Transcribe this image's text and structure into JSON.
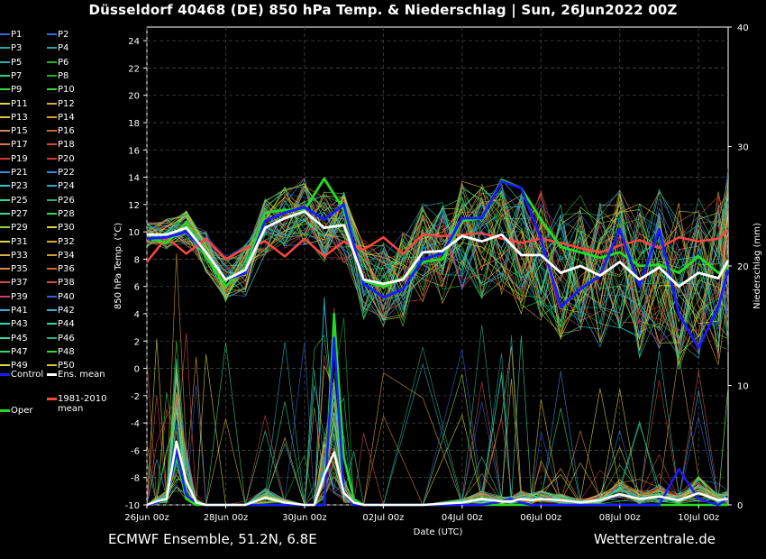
{
  "title": "Düsseldorf 40468 (DE)  850 hPa Temp. & Niederschlag | Sun, 26Jun2022 00Z",
  "footer": {
    "left": "ECMWF Ensemble, 51.2N, 6.8E",
    "right": "Wetterzentrale.de"
  },
  "legend": {
    "members": [
      "P1",
      "P2",
      "P3",
      "P4",
      "P5",
      "P6",
      "P7",
      "P8",
      "P9",
      "P10",
      "P11",
      "P12",
      "P13",
      "P14",
      "P15",
      "P16",
      "P17",
      "P18",
      "P19",
      "P20",
      "P21",
      "P22",
      "P23",
      "P24",
      "P25",
      "P26",
      "P27",
      "P28",
      "P29",
      "P30",
      "P31",
      "P32",
      "P33",
      "P34",
      "P35",
      "P36",
      "P37",
      "P38",
      "P39",
      "P40",
      "P41",
      "P42",
      "P43",
      "P44",
      "P45",
      "P46",
      "P47",
      "P48",
      "P49",
      "P50"
    ],
    "member_colors": [
      "#3a5fd8",
      "#3a5fd8",
      "#2aa8a8",
      "#2aa8a8",
      "#22b0b0",
      "#22b022",
      "#2ad88a",
      "#22b022",
      "#3ad83a",
      "#3ad83a",
      "#d8d84a",
      "#d8a84a",
      "#d8c03a",
      "#d89a3a",
      "#d88a4a",
      "#c86a2a",
      "#d87a4a",
      "#d84a2a",
      "#d83a3a",
      "#d83a3a",
      "#3a8ad8",
      "#3a8ad8",
      "#2ac8c8",
      "#2aa8c8",
      "#2ad8a8",
      "#22b08a",
      "#3ad88a",
      "#3ad84a",
      "#8ad83a",
      "#d8d82a",
      "#d8d84a",
      "#d8b02a",
      "#d8b03a",
      "#d89a2a",
      "#d88a3a",
      "#d86a2a",
      "#d84a4a",
      "#d84a4a",
      "#d83a6a",
      "#3a5fd8",
      "#3ab0d8",
      "#3ab0d8",
      "#2ad8c8",
      "#2ad8a8",
      "#3ad8a8",
      "#2ab08a",
      "#3ad86a",
      "#3ad83a",
      "#d8d83a",
      "#d8c02a"
    ],
    "control": "Control",
    "ens_mean": "Ens. mean",
    "oper": "Oper",
    "clim_line1": "1981-2010",
    "clim_line2": "mean",
    "colors": {
      "control": "#1a1aff",
      "ens_mean": "#ffffff",
      "oper": "#22dd22",
      "clim": "#ff4444"
    }
  },
  "chart_data": {
    "type": "line",
    "xlabel": "Date (UTC)",
    "ylabel": "850 hPa Temp. (°C)",
    "y2label": "Niederschlag (mm)",
    "ylim": [
      -10,
      25
    ],
    "y2lim": [
      0,
      40
    ],
    "yticks": [
      "-10",
      "-8",
      "-6",
      "-4",
      "-2",
      "0",
      "2",
      "4",
      "6",
      "8",
      "10",
      "12",
      "14",
      "16",
      "18",
      "20",
      "22",
      "24"
    ],
    "y2ticks": [
      "0",
      "10",
      "20",
      "30",
      "40"
    ],
    "xlim_hours": [
      0,
      354
    ],
    "xticks": [
      "26Jun 00z",
      "28Jun 00z",
      "30Jun 00z",
      "02Jul 00z",
      "04Jul 00z",
      "06Jul 00z",
      "08Jul 00z",
      "10Jul 00z"
    ],
    "grid": true,
    "temp_series": {
      "x_hours": [
        0,
        12,
        24,
        36,
        48,
        60,
        72,
        84,
        96,
        108,
        120,
        132,
        144,
        156,
        168,
        180,
        192,
        204,
        216,
        228,
        240,
        252,
        264,
        276,
        288,
        300,
        312,
        324,
        336,
        348,
        354
      ],
      "ens_mean": [
        9.8,
        9.8,
        10.3,
        8.5,
        6.5,
        7.2,
        10.3,
        11.0,
        11.5,
        10.3,
        10.5,
        6.5,
        6.2,
        6.5,
        8.5,
        8.6,
        9.7,
        9.3,
        9.8,
        8.3,
        8.3,
        7.0,
        7.5,
        6.8,
        7.8,
        6.5,
        7.4,
        6.0,
        7.0,
        6.6,
        7.9
      ],
      "control": [
        9.5,
        9.6,
        10.0,
        8.5,
        6.5,
        7.0,
        10.8,
        11.4,
        11.8,
        10.9,
        12.0,
        6.2,
        5.2,
        5.8,
        8.0,
        8.4,
        11.0,
        11.0,
        13.7,
        13.2,
        9.5,
        4.5,
        5.8,
        6.8,
        10.2,
        6.0,
        10.2,
        4.0,
        1.5,
        4.5,
        7.2
      ],
      "oper": [
        9.6,
        9.2,
        10.7,
        8.2,
        6.0,
        7.4,
        11.4,
        11.6,
        11.6,
        13.9,
        11.6,
        6.4,
        6.0,
        6.6,
        7.8,
        8.0,
        10.8,
        11.0,
        13.8,
        13.2,
        10.9,
        8.9,
        8.5,
        8.1,
        8.5,
        7.5,
        7.6,
        7.0,
        8.2,
        7.0,
        7.4
      ],
      "clim_mean": [
        7.8,
        9.6,
        8.4,
        9.5,
        8.0,
        8.8,
        9.3,
        8.2,
        9.5,
        8.2,
        9.3,
        8.7,
        9.6,
        8.4,
        9.8,
        9.7,
        9.8,
        9.9,
        9.5,
        9.2,
        9.5,
        9.2,
        8.8,
        8.5,
        9.0,
        9.4,
        8.8,
        9.6,
        9.3,
        9.5,
        10.1
      ]
    },
    "precip_series": {
      "x_hours": [
        0,
        6,
        12,
        18,
        24,
        30,
        36,
        48,
        60,
        72,
        84,
        96,
        102,
        108,
        114,
        120,
        126,
        132,
        144,
        168,
        192,
        204,
        216,
        222,
        228,
        234,
        240,
        252,
        264,
        276,
        288,
        300,
        312,
        324,
        336,
        348,
        354
      ],
      "ens_mean": [
        0,
        0.3,
        0.5,
        5.3,
        2.0,
        0.2,
        0,
        0,
        0,
        0.6,
        0.2,
        0,
        0,
        2.5,
        4.4,
        1.0,
        0.2,
        0,
        0,
        0,
        0.2,
        0.5,
        0.3,
        0.3,
        0.5,
        0.4,
        0.5,
        0.4,
        0.2,
        0.4,
        0.9,
        0.5,
        0.7,
        0.4,
        1.0,
        0.4,
        0.5
      ],
      "control": [
        0,
        0.2,
        0.5,
        4.5,
        0.8,
        0.2,
        0,
        0,
        0,
        0,
        0,
        0,
        0,
        0,
        14.0,
        1.0,
        0,
        0,
        0,
        0,
        0,
        0,
        0.3,
        0.5,
        0.2,
        0,
        0,
        0,
        0,
        0,
        0,
        0,
        0,
        3.0,
        0.5,
        0,
        0.6
      ],
      "oper": [
        0,
        0.2,
        0.3,
        4.0,
        0.5,
        0,
        0,
        0,
        0,
        0,
        0,
        0,
        0,
        0,
        16.0,
        4.0,
        0.5,
        0,
        0,
        0,
        0,
        0,
        0,
        0,
        0,
        0,
        0,
        0,
        0,
        0,
        0,
        0,
        0,
        0,
        0,
        0,
        0
      ]
    },
    "members_note": "50 perturbed members P1–P50 drawn as thin coloured lines"
  }
}
